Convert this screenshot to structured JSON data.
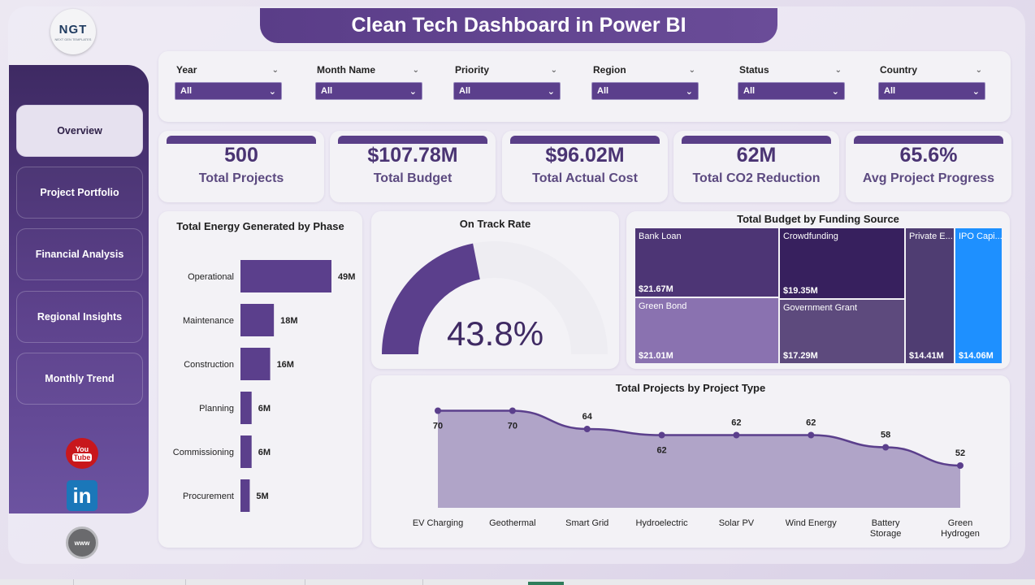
{
  "header": {
    "title": "Clean Tech Dashboard in Power BI",
    "logo_text": "NGT",
    "logo_sub": "NEXT GEN TEMPLATES"
  },
  "sidebar": {
    "items": [
      {
        "label": "Overview",
        "active": true
      },
      {
        "label": "Project Portfolio",
        "active": false
      },
      {
        "label": "Financial Analysis",
        "active": false
      },
      {
        "label": "Regional Insights",
        "active": false
      },
      {
        "label": "Monthly Trend",
        "active": false
      }
    ],
    "social": {
      "youtube_top": "You",
      "youtube_bottom": "Tube",
      "linkedin": "in",
      "web": "www"
    }
  },
  "filters": [
    {
      "label": "Year",
      "value": "All"
    },
    {
      "label": "Month Name",
      "value": "All"
    },
    {
      "label": "Priority",
      "value": "All"
    },
    {
      "label": "Region",
      "value": "All"
    },
    {
      "label": "Status",
      "value": "All"
    },
    {
      "label": "Country",
      "value": "All"
    }
  ],
  "kpis": [
    {
      "value": "500",
      "label": "Total Projects"
    },
    {
      "value": "$107.78M",
      "label": "Total Budget"
    },
    {
      "value": "$96.02M",
      "label": "Total Actual Cost"
    },
    {
      "value": "62M",
      "label": "Total CO2 Reduction"
    },
    {
      "value": "65.6%",
      "label": "Avg Project Progress"
    }
  ],
  "chart_data": [
    {
      "type": "bar",
      "orientation": "horizontal",
      "title": "Total Energy Generated by Phase",
      "categories": [
        "Operational",
        "Maintenance",
        "Construction",
        "Planning",
        "Commissioning",
        "Procurement"
      ],
      "values": [
        49,
        18,
        16,
        6,
        6,
        5
      ],
      "data_labels": [
        "49M",
        "18M",
        "16M",
        "6M",
        "6M",
        "5M"
      ],
      "color": "#5b3f8c"
    },
    {
      "type": "gauge",
      "title": "On Track Rate",
      "value": 43.8,
      "max": 100,
      "display": "43.8%",
      "fill_color": "#5b3f8c",
      "track_color": "#eeedf2"
    },
    {
      "type": "treemap",
      "title": "Total Budget by Funding Source",
      "items": [
        {
          "name": "Bank Loan",
          "value": 21.67,
          "label": "$21.67M",
          "color": "#4d3575"
        },
        {
          "name": "Green Bond",
          "value": 21.01,
          "label": "$21.01M",
          "color": "#8a72b0"
        },
        {
          "name": "Crowdfunding",
          "value": 19.35,
          "label": "$19.35M",
          "color": "#37205e"
        },
        {
          "name": "Government Grant",
          "value": 17.29,
          "label": "$17.29M",
          "color": "#5d4a7d"
        },
        {
          "name": "Private E...",
          "value": 14.41,
          "label": "$14.41M",
          "color": "#4f3d72"
        },
        {
          "name": "IPO Capi...",
          "value": 14.06,
          "label": "$14.06M",
          "color": "#1e90ff"
        }
      ]
    },
    {
      "type": "area",
      "title": "Total Projects by Project Type",
      "categories": [
        "EV Charging",
        "Geothermal",
        "Smart Grid",
        "Hydroelectric",
        "Solar PV",
        "Wind Energy",
        "Battery Storage",
        "Green Hydrogen"
      ],
      "category_lines": [
        [
          "EV Charging"
        ],
        [
          "Geothermal"
        ],
        [
          "Smart Grid"
        ],
        [
          "Hydroelectric"
        ],
        [
          "Solar PV"
        ],
        [
          "Wind Energy"
        ],
        [
          "Battery",
          "Storage"
        ],
        [
          "Green",
          "Hydrogen"
        ]
      ],
      "values": [
        70,
        70,
        64,
        62,
        62,
        62,
        58,
        52
      ],
      "ylim": [
        40,
        72
      ],
      "line_color": "#5b3f8c",
      "fill_color": "#b0a4c8"
    }
  ]
}
